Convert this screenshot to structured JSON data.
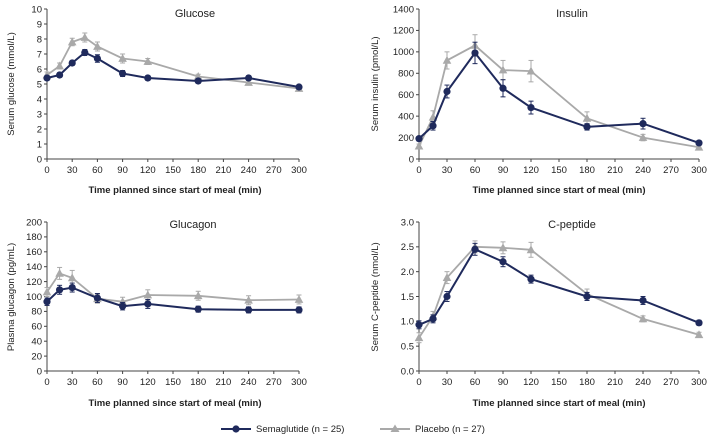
{
  "chart_data": [
    {
      "type": "line",
      "title": "Glucose",
      "xlabel": "Time planned since start of meal (min)",
      "ylabel": "Serum glucose (mmol/L)",
      "xlim": [
        0,
        300
      ],
      "ylim": [
        0,
        10
      ],
      "xticks": [
        "0",
        "30",
        "60",
        "90",
        "120",
        "150",
        "180",
        "210",
        "240",
        "270",
        "300"
      ],
      "yticks": [
        "0",
        "1",
        "2",
        "3",
        "4",
        "5",
        "6",
        "7",
        "8",
        "9",
        "10"
      ],
      "x": [
        0,
        15,
        30,
        45,
        60,
        90,
        120,
        180,
        240,
        300
      ],
      "series": [
        {
          "name": "Semaglutide (n = 25)",
          "values": [
            5.4,
            5.6,
            6.4,
            7.1,
            6.7,
            5.7,
            5.4,
            5.2,
            5.4,
            4.8
          ],
          "errors": [
            0.15,
            0.15,
            0.15,
            0.2,
            0.25,
            0.2,
            0.15,
            0.15,
            0.15,
            0.1
          ]
        },
        {
          "name": "Placebo (n = 27)",
          "values": [
            5.6,
            6.2,
            7.8,
            8.1,
            7.5,
            6.7,
            6.5,
            5.5,
            5.1,
            4.7
          ],
          "errors": [
            0.2,
            0.2,
            0.25,
            0.3,
            0.3,
            0.3,
            0.2,
            0.15,
            0.15,
            0.1
          ]
        }
      ]
    },
    {
      "type": "line",
      "title": "Insulin",
      "xlabel": "Time planned since start of meal (min)",
      "ylabel": "Serum insulin (pmol/L)",
      "xlim": [
        0,
        300
      ],
      "ylim": [
        0,
        1400
      ],
      "xticks": [
        "0",
        "30",
        "60",
        "90",
        "120",
        "150",
        "180",
        "210",
        "240",
        "270",
        "300"
      ],
      "yticks": [
        "0",
        "200",
        "400",
        "600",
        "800",
        "1000",
        "1200",
        "1400"
      ],
      "x": [
        0,
        15,
        30,
        60,
        90,
        120,
        180,
        240,
        300
      ],
      "series": [
        {
          "name": "Semaglutide (n = 25)",
          "values": [
            190,
            310,
            630,
            990,
            660,
            480,
            300,
            330,
            150
          ],
          "errors": [
            20,
            40,
            60,
            100,
            80,
            60,
            30,
            50,
            20
          ]
        },
        {
          "name": "Placebo (n = 27)",
          "values": [
            120,
            390,
            920,
            1060,
            830,
            820,
            380,
            200,
            110
          ],
          "errors": [
            20,
            60,
            80,
            100,
            90,
            100,
            60,
            30,
            15
          ]
        }
      ]
    },
    {
      "type": "line",
      "title": "Glucagon",
      "xlabel": "Time planned since start of meal (min)",
      "ylabel": "Plasma glucagon (pg/mL)",
      "xlim": [
        0,
        300
      ],
      "ylim": [
        0,
        200
      ],
      "xticks": [
        "0",
        "30",
        "60",
        "90",
        "120",
        "150",
        "180",
        "210",
        "240",
        "270",
        "300"
      ],
      "yticks": [
        "0",
        "20",
        "40",
        "60",
        "80",
        "100",
        "120",
        "140",
        "160",
        "180",
        "200"
      ],
      "x": [
        0,
        15,
        30,
        60,
        90,
        120,
        180,
        240,
        300
      ],
      "series": [
        {
          "name": "Semaglutide (n = 25)",
          "values": [
            93,
            109,
            112,
            98,
            87,
            90,
            83,
            82,
            82
          ],
          "errors": [
            5,
            6,
            6,
            6,
            5,
            6,
            4,
            4,
            4
          ]
        },
        {
          "name": "Placebo (n = 27)",
          "values": [
            106,
            131,
            125,
            97,
            93,
            102,
            101,
            95,
            96
          ],
          "errors": [
            6,
            8,
            10,
            6,
            6,
            7,
            6,
            6,
            6
          ]
        }
      ]
    },
    {
      "type": "line",
      "title": "C-peptide",
      "xlabel": "Time planned since start of meal (min)",
      "ylabel": "Serum C-peptide (nmol/L)",
      "xlim": [
        0,
        300
      ],
      "ylim": [
        0,
        3.0
      ],
      "xticks": [
        "0",
        "30",
        "60",
        "90",
        "120",
        "150",
        "180",
        "210",
        "240",
        "270",
        "300"
      ],
      "yticks": [
        "0.0",
        "0.5",
        "1.0",
        "1.5",
        "2.0",
        "2.5",
        "3.0"
      ],
      "x": [
        0,
        15,
        30,
        60,
        90,
        120,
        180,
        240,
        300
      ],
      "series": [
        {
          "name": "Semaglutide (n = 25)",
          "values": [
            0.93,
            1.05,
            1.5,
            2.45,
            2.2,
            1.85,
            1.5,
            1.42,
            0.97
          ],
          "errors": [
            0.08,
            0.08,
            0.1,
            0.12,
            0.1,
            0.08,
            0.08,
            0.08,
            0.05
          ]
        },
        {
          "name": "Placebo (n = 27)",
          "values": [
            0.67,
            1.1,
            1.88,
            2.5,
            2.48,
            2.44,
            1.55,
            1.05,
            0.73
          ],
          "errors": [
            0.1,
            0.1,
            0.12,
            0.12,
            0.12,
            0.15,
            0.1,
            0.06,
            0.05
          ]
        }
      ]
    }
  ],
  "legend": {
    "placement": "bottom-center",
    "items": [
      {
        "label": "Semaglutide (n = 25)",
        "color": "#1f2a5c",
        "marker": "circle"
      },
      {
        "label": "Placebo (n = 27)",
        "color": "#a9a9a9",
        "marker": "triangle"
      }
    ]
  },
  "colors": {
    "semaglutide": "#1f2a5c",
    "placebo": "#a9a9a9",
    "axis": "#444444"
  }
}
